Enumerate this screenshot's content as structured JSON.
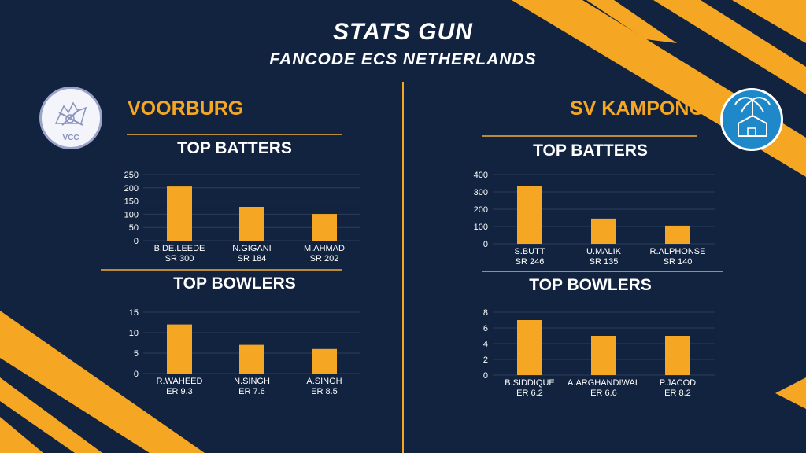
{
  "header": {
    "title": "STATS GUN",
    "subtitle": "FANCODE ECS NETHERLANDS"
  },
  "teams": {
    "left": {
      "name": "VOORBURG",
      "logo_text": "VCC"
    },
    "right": {
      "name": "SV KAMPONG"
    }
  },
  "colors": {
    "background": "#12233f",
    "accent": "#f5a623",
    "grid": "#2c3d5c",
    "divider": "#b98a3a",
    "text": "#ffffff"
  },
  "chart_data": [
    {
      "type": "bar",
      "team": "VOORBURG",
      "title": "TOP BATTERS",
      "categories": [
        "B.DE.LEEDE",
        "N.GIGANI",
        "M.AHMAD"
      ],
      "sublabels": [
        "SR 300",
        "SR 184",
        "SR 202"
      ],
      "values": [
        205,
        128,
        101
      ],
      "ylim": [
        0,
        250
      ],
      "yticks": [
        0,
        50,
        100,
        150,
        200,
        250
      ],
      "grid": true
    },
    {
      "type": "bar",
      "team": "VOORBURG",
      "title": "TOP BOWLERS",
      "categories": [
        "R.WAHEED",
        "N.SINGH",
        "A.SINGH"
      ],
      "sublabels": [
        "ER 9.3",
        "ER 7.6",
        "ER 8.5"
      ],
      "values": [
        12,
        7,
        6
      ],
      "ylim": [
        0,
        15
      ],
      "yticks": [
        0,
        5,
        10,
        15
      ],
      "grid": true
    },
    {
      "type": "bar",
      "team": "SV KAMPONG",
      "title": "TOP BATTERS",
      "categories": [
        "S.BUTT",
        "U.MALIK",
        "R.ALPHONSE"
      ],
      "sublabels": [
        "SR 246",
        "SR 135",
        "SR 140"
      ],
      "values": [
        335,
        146,
        105
      ],
      "ylim": [
        0,
        400
      ],
      "yticks": [
        0,
        100,
        200,
        300,
        400
      ],
      "grid": true
    },
    {
      "type": "bar",
      "team": "SV KAMPONG",
      "title": "TOP BOWLERS",
      "categories": [
        "B.SIDDIQUE",
        "A.ARGHANDIWAL",
        "P.JACOD"
      ],
      "sublabels": [
        "ER 6.2",
        "ER 6.6",
        "ER 8.2"
      ],
      "values": [
        7,
        5,
        5
      ],
      "ylim": [
        0,
        8
      ],
      "yticks": [
        0,
        2,
        4,
        6,
        8
      ],
      "grid": true
    }
  ]
}
